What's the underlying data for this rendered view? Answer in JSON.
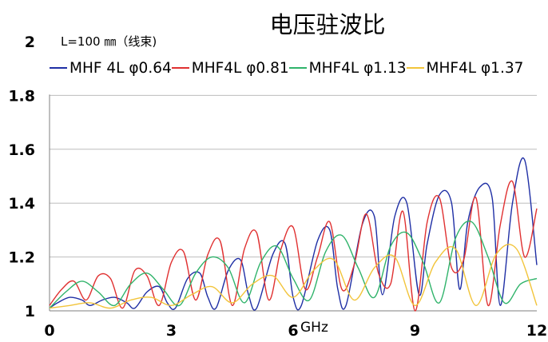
{
  "page": {
    "title": "电压驻波比",
    "note": "L=100 ㎜（线束)",
    "x_unit": "GHz"
  },
  "colors": {
    "grid": "#bdbdbd",
    "axis": "#7f7f7f",
    "series": [
      "#1f2fa5",
      "#e03131",
      "#2fb36a",
      "#f2c43a"
    ]
  },
  "chart_data": {
    "type": "line",
    "title": "电压驻波比",
    "xlabel": "GHz",
    "ylabel": "",
    "xlim": [
      0,
      12
    ],
    "ylim": [
      1,
      2
    ],
    "xticks": [
      0,
      3,
      6,
      9,
      12
    ],
    "xtick_labels": [
      "0",
      "3",
      "6",
      "9",
      "12"
    ],
    "yticks": [
      1,
      1.2,
      1.4,
      1.6,
      1.8,
      2
    ],
    "ytick_labels": [
      "1",
      "1.2",
      "1.4",
      "1.6",
      "1.8",
      "2"
    ],
    "grid": "horizontal",
    "legend_position": "top",
    "series": [
      {
        "name": "MHF 4L φ0.64",
        "x": [
          0,
          0.2,
          0.5,
          0.8,
          1.0,
          1.3,
          1.6,
          1.9,
          2.1,
          2.4,
          2.7,
          2.9,
          3.1,
          3.4,
          3.7,
          3.9,
          4.1,
          4.4,
          4.7,
          4.9,
          5.1,
          5.5,
          5.8,
          6.0,
          6.2,
          6.6,
          6.9,
          7.1,
          7.3,
          7.7,
          8.0,
          8.2,
          8.5,
          8.8,
          9.1,
          9.3,
          9.6,
          9.9,
          10.1,
          10.3,
          10.6,
          10.9,
          11.1,
          11.4,
          11.7,
          12.0
        ],
        "values": [
          1.01,
          1.03,
          1.05,
          1.04,
          1.02,
          1.04,
          1.05,
          1.03,
          1.01,
          1.07,
          1.09,
          1.03,
          1.01,
          1.12,
          1.14,
          1.05,
          1.01,
          1.15,
          1.19,
          1.06,
          1.01,
          1.21,
          1.25,
          1.05,
          1.02,
          1.26,
          1.3,
          1.08,
          1.02,
          1.32,
          1.35,
          1.06,
          1.35,
          1.4,
          1.06,
          1.25,
          1.43,
          1.4,
          1.08,
          1.33,
          1.46,
          1.42,
          1.02,
          1.4,
          1.56,
          1.17
        ]
      },
      {
        "name": "MHF4L φ0.81",
        "x": [
          0,
          0.3,
          0.6,
          0.9,
          1.2,
          1.5,
          1.8,
          2.1,
          2.4,
          2.7,
          3.0,
          3.3,
          3.6,
          3.9,
          4.2,
          4.5,
          4.8,
          5.1,
          5.4,
          5.7,
          6.0,
          6.3,
          6.6,
          6.9,
          7.2,
          7.5,
          7.8,
          8.1,
          8.4,
          8.7,
          9.0,
          9.3,
          9.6,
          9.9,
          10.2,
          10.5,
          10.8,
          11.1,
          11.4,
          11.7,
          12.0
        ],
        "values": [
          1.02,
          1.08,
          1.11,
          1.04,
          1.13,
          1.12,
          1.01,
          1.15,
          1.13,
          1.02,
          1.18,
          1.22,
          1.04,
          1.21,
          1.26,
          1.02,
          1.23,
          1.29,
          1.04,
          1.23,
          1.31,
          1.08,
          1.2,
          1.33,
          1.08,
          1.17,
          1.36,
          1.14,
          1.1,
          1.37,
          1.0,
          1.33,
          1.42,
          1.16,
          1.19,
          1.42,
          1.02,
          1.32,
          1.48,
          1.2,
          1.38
        ]
      },
      {
        "name": "MHF4L φ1.13",
        "x": [
          0,
          0.4,
          0.8,
          1.2,
          1.6,
          2.0,
          2.4,
          2.8,
          3.2,
          3.6,
          4.0,
          4.4,
          4.8,
          5.2,
          5.6,
          6.0,
          6.4,
          6.8,
          7.2,
          7.6,
          8.0,
          8.4,
          8.8,
          9.2,
          9.6,
          10.0,
          10.4,
          10.8,
          11.2,
          11.6,
          12.0
        ],
        "values": [
          1.01,
          1.07,
          1.11,
          1.07,
          1.02,
          1.1,
          1.14,
          1.08,
          1.02,
          1.14,
          1.2,
          1.16,
          1.03,
          1.18,
          1.24,
          1.12,
          1.04,
          1.22,
          1.28,
          1.16,
          1.05,
          1.24,
          1.29,
          1.18,
          1.03,
          1.27,
          1.33,
          1.2,
          1.03,
          1.1,
          1.12
        ]
      },
      {
        "name": "MHF4L φ1.37",
        "x": [
          0,
          0.5,
          1.0,
          1.5,
          2.0,
          2.5,
          3.0,
          3.5,
          4.0,
          4.5,
          5.0,
          5.5,
          6.0,
          6.5,
          7.0,
          7.5,
          8.0,
          8.5,
          9.0,
          9.5,
          10.0,
          10.5,
          11.0,
          11.5,
          12.0
        ],
        "values": [
          1.01,
          1.02,
          1.03,
          1.01,
          1.04,
          1.05,
          1.02,
          1.06,
          1.09,
          1.03,
          1.1,
          1.13,
          1.05,
          1.15,
          1.19,
          1.04,
          1.16,
          1.2,
          1.02,
          1.18,
          1.23,
          1.02,
          1.21,
          1.23,
          1.02
        ]
      }
    ]
  }
}
